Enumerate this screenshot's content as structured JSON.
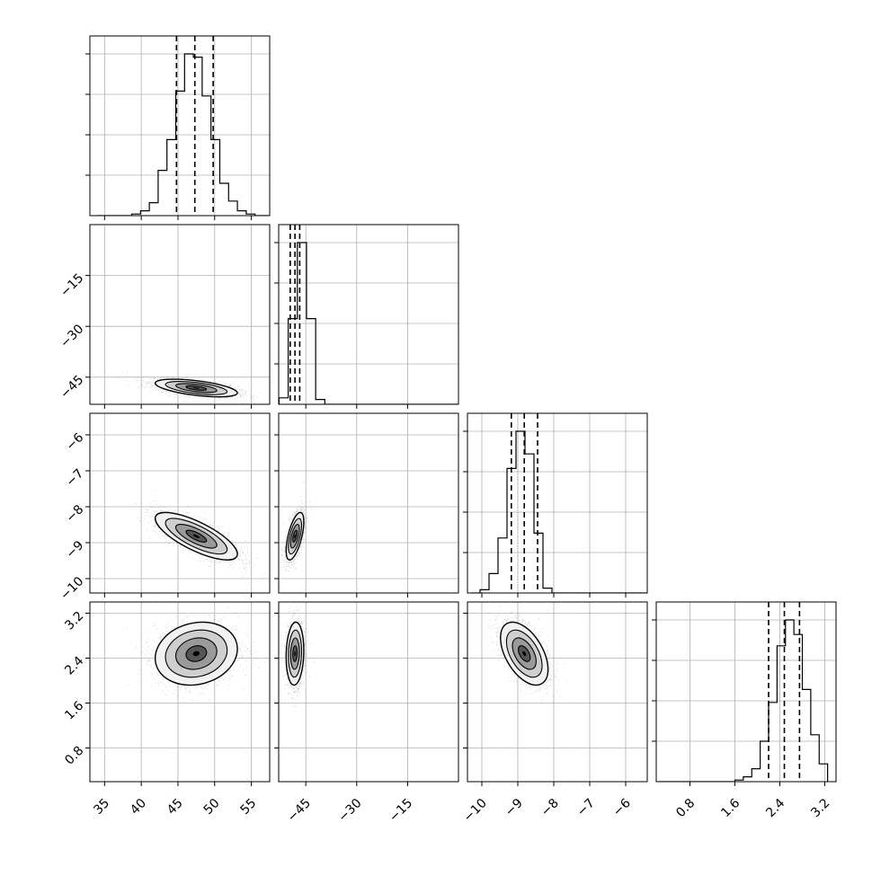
{
  "chart_data": {
    "type": "corner",
    "title": "",
    "grid": true,
    "grid_color": "#b0b0b0",
    "line_color": "#000000",
    "point_color": "#7f7f7f",
    "contour_fills": [
      "#f2f2f2",
      "#cfcfcf",
      "#9a9a9a",
      "#555555",
      "#000000"
    ],
    "parameters": [
      {
        "range": [
          33,
          57.5
        ],
        "ticks": [
          "35",
          "40",
          "45",
          "50",
          "55"
        ],
        "tick_values": [
          35,
          40,
          45,
          50,
          55
        ],
        "mean": 47.5,
        "std": 2.8
      },
      {
        "range": [
          -53,
          0
        ],
        "ticks": [
          "−45",
          "−30",
          "−15"
        ],
        "tick_values": [
          -45,
          -30,
          -15
        ],
        "mean": -48.2,
        "std": 1.3
      },
      {
        "range": [
          -10.4,
          -5.4
        ],
        "ticks": [
          "−10",
          "−9",
          "−8",
          "−7",
          "−6"
        ],
        "tick_values": [
          -10,
          -9,
          -8,
          -7,
          -6
        ],
        "mean": -8.82,
        "std": 0.33
      },
      {
        "range": [
          0.2,
          3.4
        ],
        "ticks": [
          "0.8",
          "1.6",
          "2.4",
          "3.2"
        ],
        "tick_values": [
          0.8,
          1.6,
          2.4,
          3.2
        ],
        "mean": 2.48,
        "std": 0.28
      }
    ],
    "correlations": [
      [
        1,
        -0.55,
        -0.75,
        0.15
      ],
      [
        -0.55,
        1,
        0.6,
        0.1
      ],
      [
        -0.75,
        0.6,
        1,
        -0.5
      ],
      [
        0.15,
        0.1,
        -0.5,
        1
      ]
    ],
    "histograms": [
      {
        "bin_edges": [
          33.9,
          35.1,
          36.3,
          37.5,
          38.7,
          39.9,
          41.1,
          42.3,
          43.5,
          44.7,
          45.9,
          47.1,
          48.3,
          49.5,
          50.7,
          51.9,
          53.1,
          54.3,
          55.5,
          56.7,
          57.9
        ],
        "counts": [
          0,
          0,
          0,
          0,
          1,
          3,
          8,
          28,
          47,
          77,
          100,
          98,
          74,
          47,
          20,
          9,
          3,
          1,
          0,
          0
        ],
        "quantiles": [
          44.8,
          47.3,
          49.8
        ]
      },
      {
        "bin_edges": [
          -52.9,
          -50.2,
          -47.5,
          -44.8,
          -42.1,
          -39.4,
          -36.7,
          -34.0,
          -31.3,
          -28.6,
          -25.9,
          -23.2,
          -20.5,
          -17.8,
          -15.1,
          -12.4,
          -9.7,
          -7.0,
          -4.3,
          -1.6,
          1.1
        ],
        "counts": [
          4,
          53,
          100,
          53,
          3,
          0,
          0,
          0,
          0,
          0,
          0,
          0,
          0,
          0,
          0,
          0,
          0,
          0,
          0,
          0
        ],
        "quantiles": [
          -49.6,
          -48.2,
          -46.8
        ]
      },
      {
        "bin_edges": [
          -10.3,
          -10.05,
          -9.8,
          -9.55,
          -9.3,
          -9.05,
          -8.8,
          -8.55,
          -8.3,
          -8.05,
          -7.8,
          -7.55,
          -7.3,
          -7.05,
          -6.8,
          -6.55,
          -6.3,
          -6.05,
          -5.8,
          -5.55,
          -5.3
        ],
        "counts": [
          0,
          2,
          12,
          34,
          77,
          100,
          86,
          37,
          3,
          0,
          0,
          0,
          0,
          0,
          0,
          0,
          0,
          0,
          0,
          0
        ],
        "quantiles": [
          -9.18,
          -8.82,
          -8.45
        ]
      },
      {
        "bin_edges": [
          0.25,
          0.4,
          0.55,
          0.7,
          0.85,
          1.0,
          1.15,
          1.3,
          1.45,
          1.6,
          1.75,
          1.9,
          2.05,
          2.2,
          2.35,
          2.5,
          2.65,
          2.8,
          2.95,
          3.1,
          3.25
        ],
        "counts": [
          0,
          0,
          0,
          0,
          0,
          0,
          0,
          0,
          0,
          1,
          3,
          8,
          25,
          49,
          84,
          100,
          91,
          57,
          29,
          11
        ],
        "quantiles": [
          2.2,
          2.48,
          2.75
        ]
      }
    ]
  }
}
